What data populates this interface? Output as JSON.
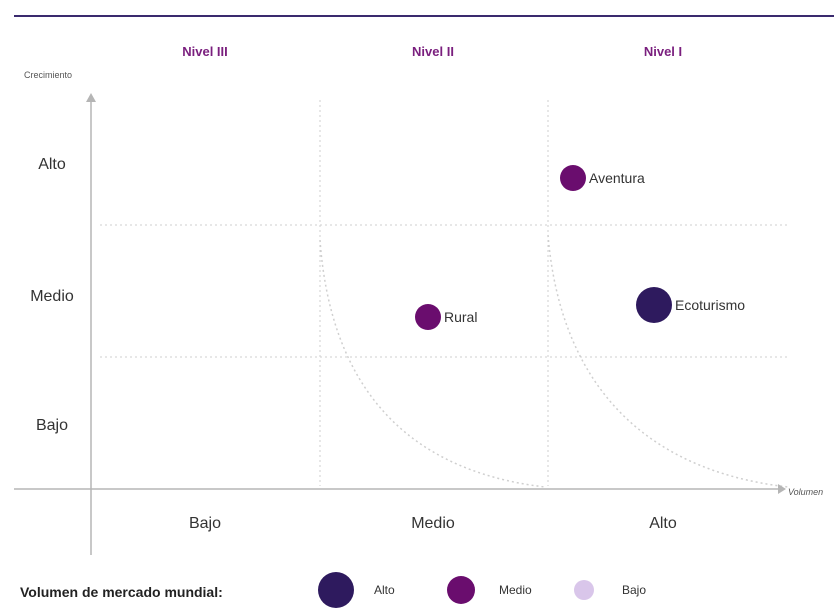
{
  "colors": {
    "accent": "#7A1F7E",
    "dark": "#2E1A5E",
    "medium": "#6A0D6E",
    "light": "#D9C6EA",
    "grid": "#cfcfcf",
    "axis": "#b5b5b5"
  },
  "chart_data": {
    "type": "scatter",
    "title": "",
    "levels": [
      "Nivel III",
      "Nivel II",
      "Nivel I"
    ],
    "xlabel": "Volumen",
    "ylabel": "Crecimiento",
    "x_categories": [
      "Bajo",
      "Medio",
      "Alto"
    ],
    "y_categories": [
      "Bajo",
      "Medio",
      "Alto"
    ],
    "points": [
      {
        "label": "Aventura",
        "x": "Alto",
        "y": "Alto",
        "size": "Medio"
      },
      {
        "label": "Rural",
        "x": "Medio",
        "y": "Medio",
        "size": "Medio"
      },
      {
        "label": "Ecoturismo",
        "x": "Alto",
        "y": "Medio",
        "size": "Alto"
      }
    ],
    "legend": {
      "title": "Volumen de mercado mundial:",
      "items": [
        {
          "label": "Alto",
          "color": "#2E1A5E"
        },
        {
          "label": "Medio",
          "color": "#6A0D6E"
        },
        {
          "label": "Bajo",
          "color": "#D9C6EA"
        }
      ]
    }
  }
}
